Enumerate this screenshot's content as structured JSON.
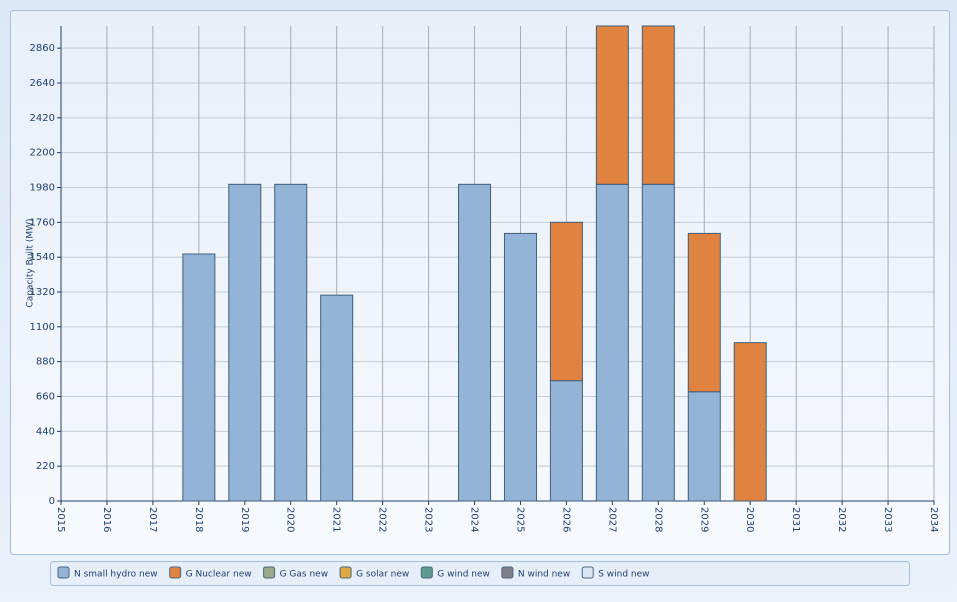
{
  "chart_data": {
    "type": "stacked_bar",
    "y_label": "Capacity Built (MW)",
    "categories": [
      "2015",
      "2016",
      "2017",
      "2018",
      "2019",
      "2020",
      "2021",
      "2022",
      "2023",
      "2024",
      "2025",
      "2026",
      "2027",
      "2028",
      "2029",
      "2030",
      "2031",
      "2032",
      "2033",
      "2034"
    ],
    "series": [
      {
        "name": "N small hydro new",
        "color": "#93b4d6",
        "values": [
          null,
          null,
          null,
          1560,
          2000,
          2000,
          1300,
          null,
          null,
          2000,
          1690,
          760,
          2000,
          2000,
          690,
          null,
          null,
          null,
          null,
          null
        ]
      },
      {
        "name": "G Nuclear new",
        "color": "#e08240",
        "values": [
          null,
          null,
          null,
          null,
          null,
          null,
          null,
          null,
          null,
          null,
          null,
          1000,
          1000,
          1000,
          1000,
          1000,
          null,
          null,
          null,
          null
        ]
      },
      {
        "name": "G Gas new",
        "color": "#9aa98a",
        "values": [
          null,
          null,
          null,
          null,
          null,
          null,
          null,
          null,
          null,
          null,
          null,
          null,
          null,
          null,
          null,
          null,
          null,
          null,
          null,
          null
        ]
      },
      {
        "name": "G solar new",
        "color": "#e0a640",
        "values": [
          null,
          null,
          null,
          null,
          null,
          null,
          null,
          null,
          null,
          null,
          null,
          null,
          null,
          null,
          null,
          null,
          null,
          null,
          null,
          null
        ]
      },
      {
        "name": "G wind new",
        "color": "#5f9a8f",
        "values": [
          null,
          null,
          null,
          null,
          null,
          null,
          null,
          null,
          null,
          null,
          null,
          null,
          null,
          null,
          null,
          null,
          null,
          null,
          null,
          null
        ]
      },
      {
        "name": "N wind new",
        "color": "#7f7f86",
        "values": [
          null,
          null,
          null,
          null,
          null,
          null,
          null,
          null,
          null,
          null,
          null,
          null,
          null,
          null,
          null,
          null,
          null,
          null,
          null,
          null
        ]
      },
      {
        "name": "S wind new",
        "color": "#dce6f2",
        "values": [
          null,
          null,
          null,
          null,
          null,
          null,
          null,
          null,
          null,
          null,
          null,
          null,
          null,
          null,
          null,
          null,
          null,
          null,
          null,
          null
        ]
      }
    ],
    "ylim": [
      0,
      3000
    ],
    "yticks": [
      0,
      220,
      440,
      660,
      880,
      1100,
      1320,
      1540,
      1760,
      1980,
      2200,
      2420,
      2640,
      2860
    ],
    "grid": true,
    "legend": "bottom"
  }
}
